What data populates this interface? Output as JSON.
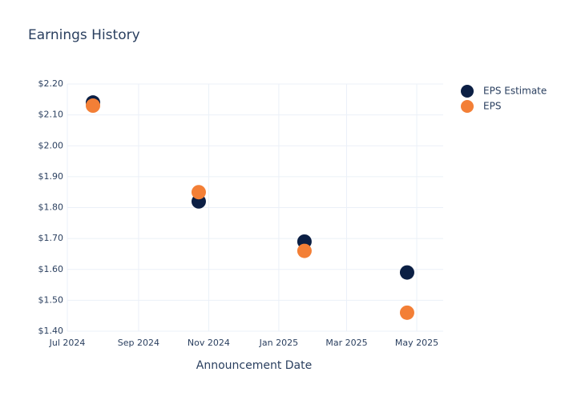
{
  "chart_data": {
    "type": "scatter",
    "title": "Earnings History",
    "x_label": "Announcement Date",
    "x": [
      "2024-07",
      "2024-10",
      "2025-01",
      "2025-04"
    ],
    "series": [
      {
        "name": "EPS Estimate",
        "color": "#0b1f44",
        "values": [
          2.14,
          1.82,
          1.69,
          1.59
        ]
      },
      {
        "name": "EPS",
        "color": "#f37f36",
        "values": [
          2.13,
          1.85,
          1.66,
          1.46
        ]
      }
    ],
    "xlim": [
      "2024-07",
      "2025-05"
    ],
    "xticks": [
      {
        "value": "2024-07",
        "label": "Jul 2024"
      },
      {
        "value": "2024-09",
        "label": "Sep 2024"
      },
      {
        "value": "2024-11",
        "label": "Nov 2024"
      },
      {
        "value": "2025-01",
        "label": "Jan 2025"
      },
      {
        "value": "2025-03",
        "label": "Mar 2025"
      },
      {
        "value": "2025-05",
        "label": "May 2025"
      }
    ],
    "ylim": [
      1.4,
      2.2
    ],
    "yticks": [
      {
        "value": 1.4,
        "label": "$1.40"
      },
      {
        "value": 1.5,
        "label": "$1.50"
      },
      {
        "value": 1.6,
        "label": "$1.60"
      },
      {
        "value": 1.7,
        "label": "$1.70"
      },
      {
        "value": 1.8,
        "label": "$1.80"
      },
      {
        "value": 1.9,
        "label": "$1.90"
      },
      {
        "value": 2.0,
        "label": "$2.00"
      },
      {
        "value": 2.1,
        "label": "$2.10"
      },
      {
        "value": 2.2,
        "label": "$2.20"
      }
    ],
    "grid": true,
    "legend": "top-right"
  }
}
